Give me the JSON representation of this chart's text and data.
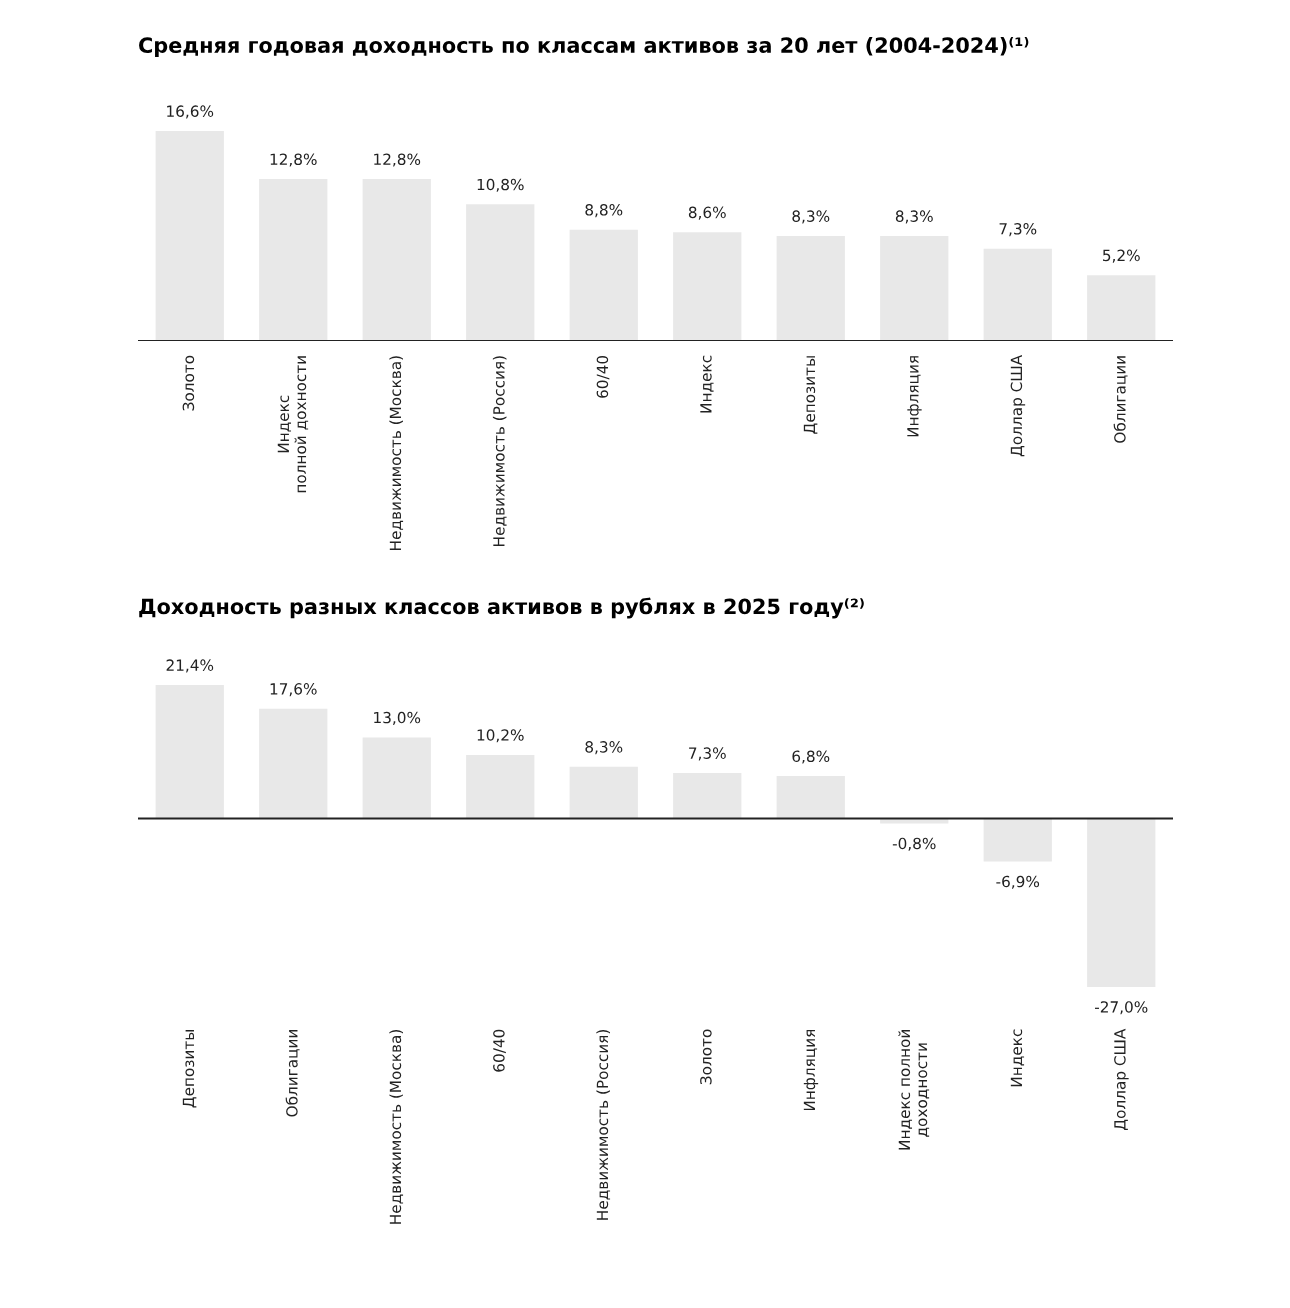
{
  "chart_data": [
    {
      "type": "bar",
      "title": "Средняя годовая доходность по классам активов за 20 лет (2004-2024)⁽¹⁾",
      "categories": [
        "Золото",
        "Индекс\nполной дохности",
        "Недвижимость (Москва)",
        "Недвижимость (Россия)",
        "60/40",
        "Индекс",
        "Депозиты",
        "Инфляция",
        "Доллар США",
        "Облигации"
      ],
      "series": [
        {
          "color": "#e8e8e8",
          "values": [
            16.6,
            12.8,
            12.8,
            10.8,
            8.8,
            8.6,
            8.3,
            8.3,
            7.3,
            5.2
          ],
          "value_labels": [
            "16,6%",
            "12,8%",
            "12,8%",
            "10,8%",
            "8,8%",
            "8,6%",
            "8,3%",
            "8,3%",
            "7,3%",
            "5,2%"
          ]
        }
      ],
      "tick_labels": "x",
      "grid": false,
      "legend": false
    },
    {
      "type": "bar",
      "title": "Доходность разных классов активов в рублях в 2025 году⁽²⁾",
      "categories": [
        "Депозиты",
        "Облигации",
        "Недвижимость (Москва)",
        "60/40",
        "Недвижимость (Россия)",
        "Золото",
        "Инфляция",
        "Индекс полной\nдоходности",
        "Индекс",
        "Доллар США"
      ],
      "series": [
        {
          "color": "#e8e8e8",
          "values": [
            21.4,
            17.6,
            13.0,
            10.2,
            8.3,
            7.3,
            6.8,
            -0.8,
            -6.9,
            -27.0
          ],
          "value_labels": [
            "21,4%",
            "17,6%",
            "13,0%",
            "10,2%",
            "8,3%",
            "7,3%",
            "6,8%",
            "-0,8%",
            "-6,9%",
            "-27,0%"
          ]
        }
      ],
      "tick_labels": "x",
      "grid": false,
      "legend": false
    }
  ]
}
